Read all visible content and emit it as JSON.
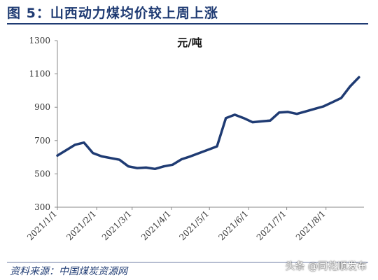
{
  "header": {
    "title": "图 5：山西动力煤均价较上周上涨"
  },
  "footer": {
    "source": "资料来源：中国煤炭资源网",
    "watermark": "头条 @同花顺发布"
  },
  "chart_data": {
    "type": "line",
    "title": "",
    "unit_label": "元/吨",
    "xlabel": "",
    "ylabel": "",
    "ylim": [
      300,
      1300
    ],
    "yticks": [
      300,
      500,
      700,
      900,
      1100,
      1300
    ],
    "xlim": [
      "2021-01-01",
      "2021-08-31"
    ],
    "xtick_labels": [
      "2021/1/1",
      "2021/2/1",
      "2021/3/1",
      "2021/4/1",
      "2021/5/1",
      "2021/6/1",
      "2021/7/1",
      "2021/8/1"
    ],
    "xtick_dates": [
      "2021-01-01",
      "2021-02-01",
      "2021-03-01",
      "2021-04-01",
      "2021-05-01",
      "2021-06-01",
      "2021-07-01",
      "2021-08-01"
    ],
    "grid": false,
    "line_color": "#1f3b73",
    "series": [
      {
        "x": [
          "2021-01-01",
          "2021-01-15",
          "2021-01-22",
          "2021-01-29",
          "2021-02-05",
          "2021-02-19",
          "2021-02-26",
          "2021-03-05",
          "2021-03-12",
          "2021-03-19",
          "2021-03-26",
          "2021-04-02",
          "2021-04-09",
          "2021-04-16",
          "2021-04-23",
          "2021-04-30",
          "2021-05-07",
          "2021-05-14",
          "2021-05-21",
          "2021-05-28",
          "2021-06-04",
          "2021-06-11",
          "2021-06-18",
          "2021-06-25",
          "2021-07-02",
          "2021-07-09",
          "2021-07-16",
          "2021-07-23",
          "2021-07-30",
          "2021-08-06",
          "2021-08-13",
          "2021-08-20",
          "2021-08-27"
        ],
        "values": [
          610,
          675,
          688,
          625,
          605,
          585,
          545,
          535,
          538,
          530,
          545,
          555,
          588,
          605,
          625,
          645,
          665,
          835,
          855,
          835,
          810,
          815,
          820,
          868,
          872,
          860,
          875,
          890,
          905,
          930,
          955,
          1025,
          1080
        ]
      }
    ]
  }
}
